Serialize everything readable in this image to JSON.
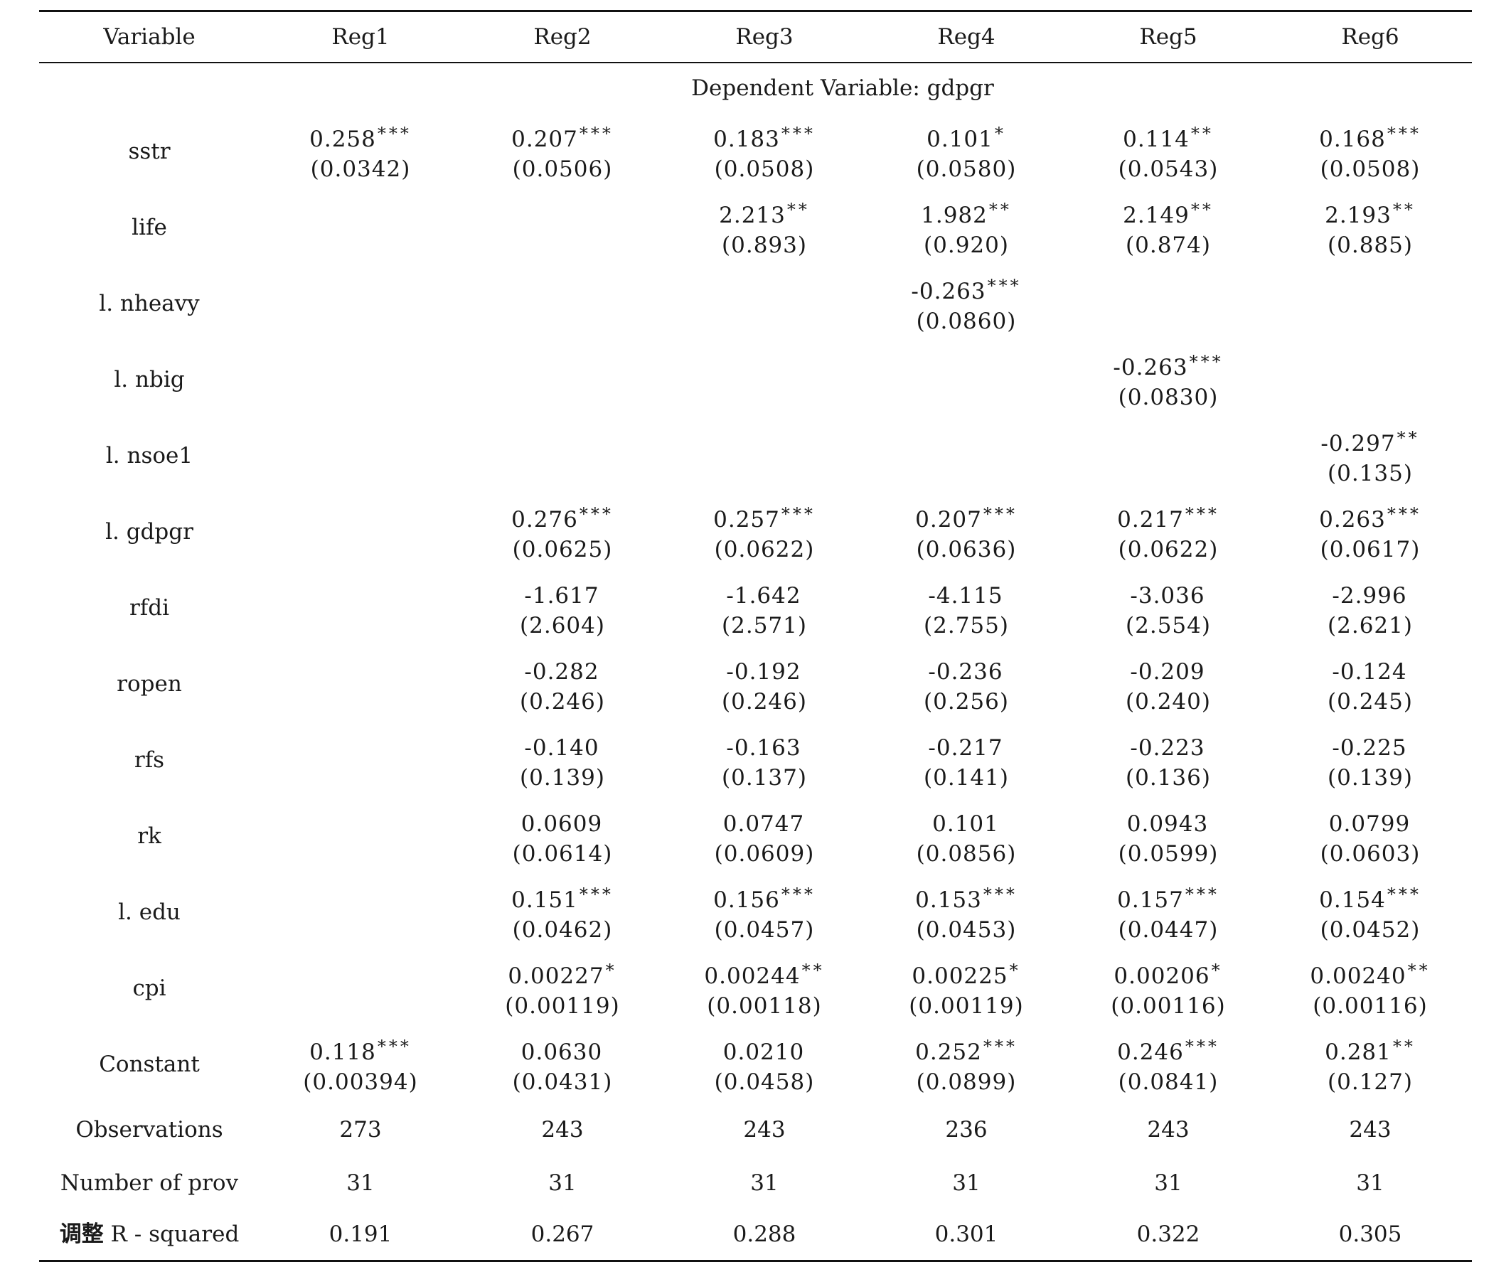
{
  "columns": [
    "Variable",
    "Reg1",
    "Reg2",
    "Reg3",
    "Reg4",
    "Reg5",
    "Reg6"
  ],
  "dependent_variable": "Dependent Variable: gdpgr",
  "rows": [
    {
      "name": "sstr",
      "cells": [
        {
          "coef": "0.258",
          "stars": "***",
          "se": "(0.0342)"
        },
        {
          "coef": "0.207",
          "stars": "***",
          "se": "(0.0506)"
        },
        {
          "coef": "0.183",
          "stars": "***",
          "se": "(0.0508)"
        },
        {
          "coef": "0.101",
          "stars": "*",
          "se": "(0.0580)"
        },
        {
          "coef": "0.114",
          "stars": "**",
          "se": "(0.0543)"
        },
        {
          "coef": "0.168",
          "stars": "***",
          "se": "(0.0508)"
        }
      ]
    },
    {
      "name": "life",
      "cells": [
        {
          "coef": "",
          "stars": "",
          "se": ""
        },
        {
          "coef": "",
          "stars": "",
          "se": ""
        },
        {
          "coef": "2.213",
          "stars": "**",
          "se": "(0.893)"
        },
        {
          "coef": "1.982",
          "stars": "**",
          "se": "(0.920)"
        },
        {
          "coef": "2.149",
          "stars": "**",
          "se": "(0.874)"
        },
        {
          "coef": "2.193",
          "stars": "**",
          "se": "(0.885)"
        }
      ]
    },
    {
      "name": "l. nheavy",
      "cells": [
        {
          "coef": "",
          "stars": "",
          "se": ""
        },
        {
          "coef": "",
          "stars": "",
          "se": ""
        },
        {
          "coef": "",
          "stars": "",
          "se": ""
        },
        {
          "coef": "-0.263",
          "stars": "***",
          "se": "(0.0860)"
        },
        {
          "coef": "",
          "stars": "",
          "se": ""
        },
        {
          "coef": "",
          "stars": "",
          "se": ""
        }
      ]
    },
    {
      "name": "l. nbig",
      "cells": [
        {
          "coef": "",
          "stars": "",
          "se": ""
        },
        {
          "coef": "",
          "stars": "",
          "se": ""
        },
        {
          "coef": "",
          "stars": "",
          "se": ""
        },
        {
          "coef": "",
          "stars": "",
          "se": ""
        },
        {
          "coef": "-0.263",
          "stars": "***",
          "se": "(0.0830)"
        },
        {
          "coef": "",
          "stars": "",
          "se": ""
        }
      ]
    },
    {
      "name": "l. nsoe1",
      "cells": [
        {
          "coef": "",
          "stars": "",
          "se": ""
        },
        {
          "coef": "",
          "stars": "",
          "se": ""
        },
        {
          "coef": "",
          "stars": "",
          "se": ""
        },
        {
          "coef": "",
          "stars": "",
          "se": ""
        },
        {
          "coef": "",
          "stars": "",
          "se": ""
        },
        {
          "coef": "-0.297",
          "stars": "**",
          "se": "(0.135)"
        }
      ]
    },
    {
      "name": "l. gdpgr",
      "cells": [
        {
          "coef": "",
          "stars": "",
          "se": ""
        },
        {
          "coef": "0.276",
          "stars": "***",
          "se": "(0.0625)"
        },
        {
          "coef": "0.257",
          "stars": "***",
          "se": "(0.0622)"
        },
        {
          "coef": "0.207",
          "stars": "***",
          "se": "(0.0636)"
        },
        {
          "coef": "0.217",
          "stars": "***",
          "se": "(0.0622)"
        },
        {
          "coef": "0.263",
          "stars": "***",
          "se": "(0.0617)"
        }
      ]
    },
    {
      "name": "rfdi",
      "cells": [
        {
          "coef": "",
          "stars": "",
          "se": ""
        },
        {
          "coef": "-1.617",
          "stars": "",
          "se": "(2.604)"
        },
        {
          "coef": "-1.642",
          "stars": "",
          "se": "(2.571)"
        },
        {
          "coef": "-4.115",
          "stars": "",
          "se": "(2.755)"
        },
        {
          "coef": "-3.036",
          "stars": "",
          "se": "(2.554)"
        },
        {
          "coef": "-2.996",
          "stars": "",
          "se": "(2.621)"
        }
      ]
    },
    {
      "name": "ropen",
      "cells": [
        {
          "coef": "",
          "stars": "",
          "se": ""
        },
        {
          "coef": "-0.282",
          "stars": "",
          "se": "(0.246)"
        },
        {
          "coef": "-0.192",
          "stars": "",
          "se": "(0.246)"
        },
        {
          "coef": "-0.236",
          "stars": "",
          "se": "(0.256)"
        },
        {
          "coef": "-0.209",
          "stars": "",
          "se": "(0.240)"
        },
        {
          "coef": "-0.124",
          "stars": "",
          "se": "(0.245)"
        }
      ]
    },
    {
      "name": "rfs",
      "cells": [
        {
          "coef": "",
          "stars": "",
          "se": ""
        },
        {
          "coef": "-0.140",
          "stars": "",
          "se": "(0.139)"
        },
        {
          "coef": "-0.163",
          "stars": "",
          "se": "(0.137)"
        },
        {
          "coef": "-0.217",
          "stars": "",
          "se": "(0.141)"
        },
        {
          "coef": "-0.223",
          "stars": "",
          "se": "(0.136)"
        },
        {
          "coef": "-0.225",
          "stars": "",
          "se": "(0.139)"
        }
      ]
    },
    {
      "name": "rk",
      "cells": [
        {
          "coef": "",
          "stars": "",
          "se": ""
        },
        {
          "coef": "0.0609",
          "stars": "",
          "se": "(0.0614)"
        },
        {
          "coef": "0.0747",
          "stars": "",
          "se": "(0.0609)"
        },
        {
          "coef": "0.101",
          "stars": "",
          "se": "(0.0856)"
        },
        {
          "coef": "0.0943",
          "stars": "",
          "se": "(0.0599)"
        },
        {
          "coef": "0.0799",
          "stars": "",
          "se": "(0.0603)"
        }
      ]
    },
    {
      "name": "l. edu",
      "cells": [
        {
          "coef": "",
          "stars": "",
          "se": ""
        },
        {
          "coef": "0.151",
          "stars": "***",
          "se": "(0.0462)"
        },
        {
          "coef": "0.156",
          "stars": "***",
          "se": "(0.0457)"
        },
        {
          "coef": "0.153",
          "stars": "***",
          "se": "(0.0453)"
        },
        {
          "coef": "0.157",
          "stars": "***",
          "se": "(0.0447)"
        },
        {
          "coef": "0.154",
          "stars": "***",
          "se": "(0.0452)"
        }
      ]
    },
    {
      "name": "cpi",
      "cells": [
        {
          "coef": "",
          "stars": "",
          "se": ""
        },
        {
          "coef": "0.00227",
          "stars": "*",
          "se": "(0.00119)"
        },
        {
          "coef": "0.00244",
          "stars": "**",
          "se": "(0.00118)"
        },
        {
          "coef": "0.00225",
          "stars": "*",
          "se": "(0.00119)"
        },
        {
          "coef": "0.00206",
          "stars": "*",
          "se": "(0.00116)"
        },
        {
          "coef": "0.00240",
          "stars": "**",
          "se": "(0.00116)"
        }
      ]
    },
    {
      "name": "Constant",
      "cells": [
        {
          "coef": "0.118",
          "stars": "***",
          "se": "(0.00394)"
        },
        {
          "coef": "0.0630",
          "stars": "",
          "se": "(0.0431)"
        },
        {
          "coef": "0.0210",
          "stars": "",
          "se": "(0.0458)"
        },
        {
          "coef": "0.252",
          "stars": "***",
          "se": "(0.0899)"
        },
        {
          "coef": "0.246",
          "stars": "***",
          "se": "(0.0841)"
        },
        {
          "coef": "0.281",
          "stars": "**",
          "se": "(0.127)"
        }
      ]
    }
  ],
  "stats": [
    {
      "name": "Observations",
      "values": [
        "273",
        "243",
        "243",
        "236",
        "243",
        "243"
      ]
    },
    {
      "name": "Number of prov",
      "values": [
        "31",
        "31",
        "31",
        "31",
        "31",
        "31"
      ]
    },
    {
      "name_cjk": "调整",
      "name": " R - squared",
      "values": [
        "0.191",
        "0.267",
        "0.288",
        "0.301",
        "0.322",
        "0.305"
      ]
    }
  ]
}
